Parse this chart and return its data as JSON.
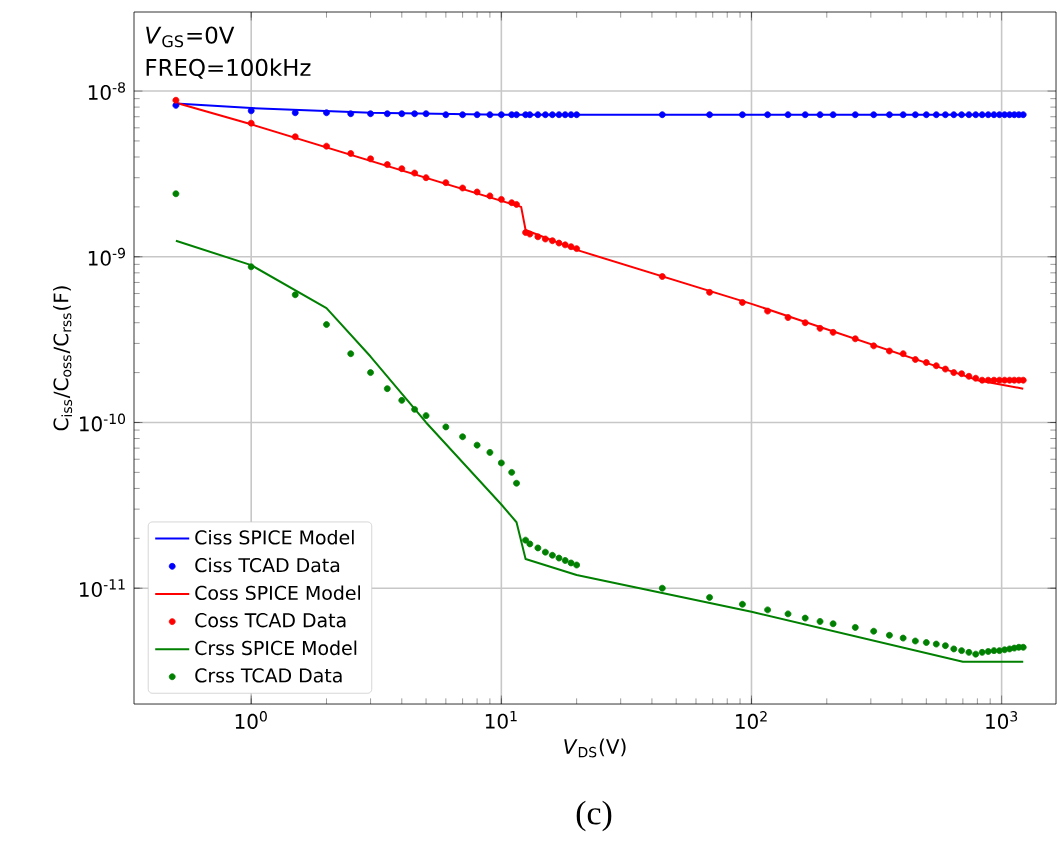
{
  "chart_data": {
    "type": "line",
    "title": null,
    "xlabel": "*V*$_{DS}$(V)",
    "ylabel": "C$_{iss}$/C$_{oss}$/C$_{rss}$(F)",
    "annotations": [
      "*V*$_{GS}$=0V",
      "FREQ=100kHz",
      "(c)"
    ],
    "log": "xy",
    "grid": true,
    "legend": "bottom left",
    "xlim": [
      0.34,
      1650
    ],
    "ylim": [
      2e-12,
      3e-08
    ],
    "xticks": [
      {
        "value": 1,
        "label": "10$^{0}$"
      },
      {
        "value": 10,
        "label": "10$^{1}$"
      },
      {
        "value": 100,
        "label": "10$^{2}$"
      },
      {
        "value": 1000,
        "label": "10$^{3}$"
      }
    ],
    "yticks": [
      {
        "value": 1e-11,
        "label": "10$^{-11}$"
      },
      {
        "value": 1e-10,
        "label": "10$^{-10}$"
      },
      {
        "value": 1e-09,
        "label": "10$^{-9}$"
      },
      {
        "value": 1e-08,
        "label": "10$^{-8}$"
      }
    ],
    "series": [
      {
        "name": "Ciss SPICE Model",
        "marker": "none",
        "color": "#0000ff",
        "x": [
          0.5,
          1,
          3,
          10,
          1220
        ],
        "values": [
          8.4e-09,
          7.9e-09,
          7.4e-09,
          7.2e-09,
          7.2e-09
        ]
      },
      {
        "name": "Ciss TCAD Data",
        "type": "scatter",
        "marker": "circle",
        "color": "#0000ff",
        "x": [
          0.5,
          1,
          1.5,
          2,
          2.5,
          3,
          3.5,
          4,
          4.5,
          5,
          6,
          7,
          8,
          9,
          10,
          11,
          11.5,
          12.5,
          13,
          14,
          15,
          16,
          17,
          18,
          19,
          20,
          44,
          68,
          92,
          116,
          140,
          164,
          188,
          212,
          260,
          308,
          356,
          404,
          452,
          500,
          548,
          596,
          644,
          692,
          740,
          788,
          836,
          884,
          932,
          980,
          1028,
          1076,
          1124,
          1172,
          1220
        ],
        "values": [
          8.2e-09,
          7.6e-09,
          7.4e-09,
          7.4e-09,
          7.3e-09,
          7.3e-09,
          7.3e-09,
          7.3e-09,
          7.3e-09,
          7.3e-09,
          7.2e-09,
          7.2e-09,
          7.2e-09,
          7.2e-09,
          7.2e-09,
          7.2e-09,
          7.2e-09,
          7.2e-09,
          7.2e-09,
          7.2e-09,
          7.2e-09,
          7.2e-09,
          7.2e-09,
          7.2e-09,
          7.2e-09,
          7.2e-09,
          7.2e-09,
          7.2e-09,
          7.2e-09,
          7.2e-09,
          7.2e-09,
          7.2e-09,
          7.2e-09,
          7.2e-09,
          7.2e-09,
          7.2e-09,
          7.2e-09,
          7.2e-09,
          7.2e-09,
          7.2e-09,
          7.2e-09,
          7.2e-09,
          7.2e-09,
          7.2e-09,
          7.2e-09,
          7.2e-09,
          7.2e-09,
          7.2e-09,
          7.2e-09,
          7.2e-09,
          7.2e-09,
          7.2e-09,
          7.2e-09,
          7.2e-09,
          7.2e-09
        ]
      },
      {
        "name": "Coss SPICE Model",
        "marker": "none",
        "color": "#ff0000",
        "x": [
          0.5,
          1,
          12,
          12.5,
          20,
          100,
          800,
          1220
        ],
        "values": [
          8.5e-09,
          6.3e-09,
          2e-09,
          1.45e-09,
          1.1e-09,
          5.2e-10,
          1.8e-10,
          1.6e-10
        ]
      },
      {
        "name": "Coss TCAD Data",
        "type": "scatter",
        "marker": "circle",
        "color": "#ff0000",
        "x": [
          0.5,
          1,
          1.5,
          2,
          2.5,
          3,
          3.5,
          4,
          4.5,
          5,
          6,
          7,
          8,
          9,
          10,
          11,
          11.5,
          12.5,
          13,
          14,
          15,
          16,
          17,
          18,
          19,
          20,
          44,
          68,
          92,
          116,
          140,
          164,
          188,
          212,
          260,
          308,
          356,
          404,
          452,
          500,
          548,
          596,
          644,
          692,
          740,
          788,
          836,
          884,
          932,
          980,
          1028,
          1076,
          1124,
          1172,
          1220
        ],
        "values": [
          8.8e-09,
          6.4e-09,
          5.3e-09,
          4.65e-09,
          4.2e-09,
          3.9e-09,
          3.6e-09,
          3.4e-09,
          3.2e-09,
          3e-09,
          2.8e-09,
          2.6e-09,
          2.46e-09,
          2.33e-09,
          2.22e-09,
          2.12e-09,
          2.07e-09,
          1.4e-09,
          1.37e-09,
          1.32e-09,
          1.28e-09,
          1.25e-09,
          1.21e-09,
          1.18e-09,
          1.15e-09,
          1.12e-09,
          7.6e-10,
          6.1e-10,
          5.3e-10,
          4.7e-10,
          4.3e-10,
          4e-10,
          3.7e-10,
          3.5e-10,
          3.2e-10,
          2.9e-10,
          2.7e-10,
          2.6e-10,
          2.4e-10,
          2.3e-10,
          2.2e-10,
          2.1e-10,
          2e-10,
          1.97e-10,
          1.9e-10,
          1.85e-10,
          1.8e-10,
          1.8e-10,
          1.8e-10,
          1.8e-10,
          1.8e-10,
          1.8e-10,
          1.8e-10,
          1.8e-10,
          1.8e-10
        ]
      },
      {
        "name": "Crss SPICE Model",
        "marker": "none",
        "color": "#008000",
        "x": [
          0.5,
          1,
          2,
          3,
          5,
          10,
          11.5,
          12.5,
          20,
          100,
          700,
          1220
        ],
        "values": [
          1.25e-09,
          8.9e-10,
          4.9e-10,
          2.5e-10,
          1e-10,
          3.2e-11,
          2.5e-11,
          1.5e-11,
          1.2e-11,
          7.2e-12,
          3.6e-12,
          3.6e-12
        ]
      },
      {
        "name": "Crss TCAD Data",
        "type": "scatter",
        "marker": "circle",
        "color": "#008000",
        "x": [
          0.5,
          1,
          1.5,
          2,
          2.5,
          3,
          3.5,
          4,
          4.5,
          5,
          6,
          7,
          8,
          9,
          10,
          11,
          11.5,
          12.5,
          13,
          14,
          15,
          16,
          17,
          18,
          19,
          20,
          44,
          68,
          92,
          116,
          140,
          164,
          188,
          212,
          260,
          308,
          356,
          404,
          452,
          500,
          548,
          596,
          644,
          692,
          740,
          788,
          836,
          884,
          932,
          980,
          1028,
          1076,
          1124,
          1172,
          1220
        ],
        "values": [
          2.4e-09,
          8.7e-10,
          5.9e-10,
          3.9e-10,
          2.6e-10,
          2e-10,
          1.6e-10,
          1.36e-10,
          1.2e-10,
          1.1e-10,
          9.4e-11,
          8.2e-11,
          7.3e-11,
          6.6e-11,
          5.7e-11,
          5e-11,
          4.3e-11,
          1.95e-11,
          1.85e-11,
          1.75e-11,
          1.65e-11,
          1.58e-11,
          1.52e-11,
          1.47e-11,
          1.42e-11,
          1.38e-11,
          1e-11,
          8.8e-12,
          8e-12,
          7.4e-12,
          7e-12,
          6.6e-12,
          6.3e-12,
          6.1e-12,
          5.8e-12,
          5.5e-12,
          5.2e-12,
          5e-12,
          4.8e-12,
          4.7e-12,
          4.6e-12,
          4.5e-12,
          4.3e-12,
          4.2e-12,
          4.1e-12,
          4e-12,
          4.1e-12,
          4.15e-12,
          4.2e-12,
          4.2e-12,
          4.25e-12,
          4.3e-12,
          4.35e-12,
          4.4e-12,
          4.4e-12
        ]
      }
    ]
  }
}
